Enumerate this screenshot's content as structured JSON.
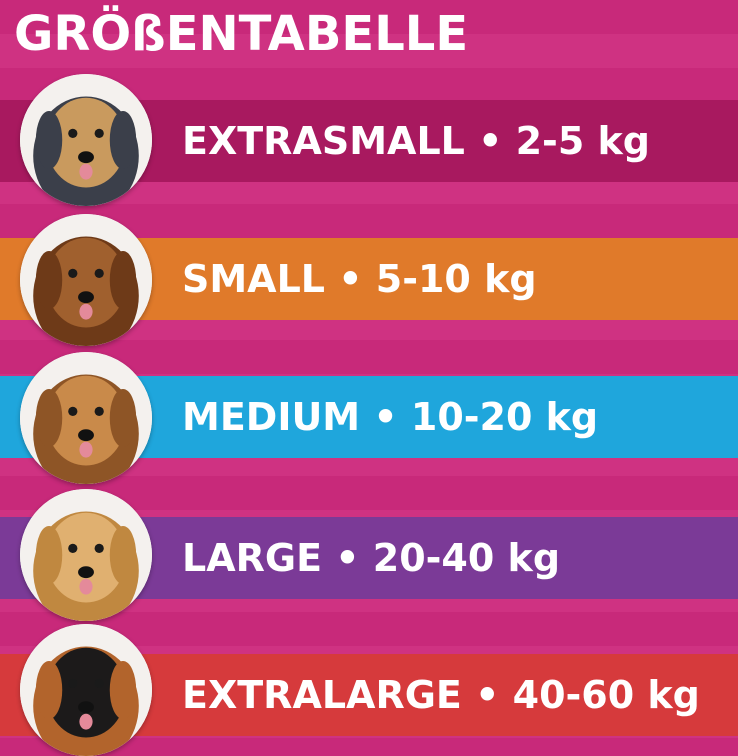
{
  "title": "GRÖßENTABELLE",
  "sizes": [
    {
      "label": "EXTRASMALL • 2-5 kg",
      "color": "#a8195f",
      "dog": "yorkshire-terrier",
      "fur": "#c99a5e",
      "dark": "#3b3f4a"
    },
    {
      "label": "SMALL • 5-10 kg",
      "color": "#e07a2a",
      "dog": "dachshund",
      "fur": "#a0602e",
      "dark": "#6e3a18"
    },
    {
      "label": "MEDIUM • 10-20 kg",
      "color": "#1fa6dc",
      "dog": "cocker-spaniel",
      "fur": "#c98a4a",
      "dark": "#8e5526"
    },
    {
      "label": "LARGE • 20-40 kg",
      "color": "#7b3a97",
      "dog": "golden-retriever",
      "fur": "#e0b070",
      "dark": "#c08840"
    },
    {
      "label": "EXTRALARGE • 40-60 kg",
      "color": "#d63a3c",
      "dog": "bernese-mountain-dog",
      "fur": "#1c1a1a",
      "dark": "#b2642c"
    }
  ]
}
